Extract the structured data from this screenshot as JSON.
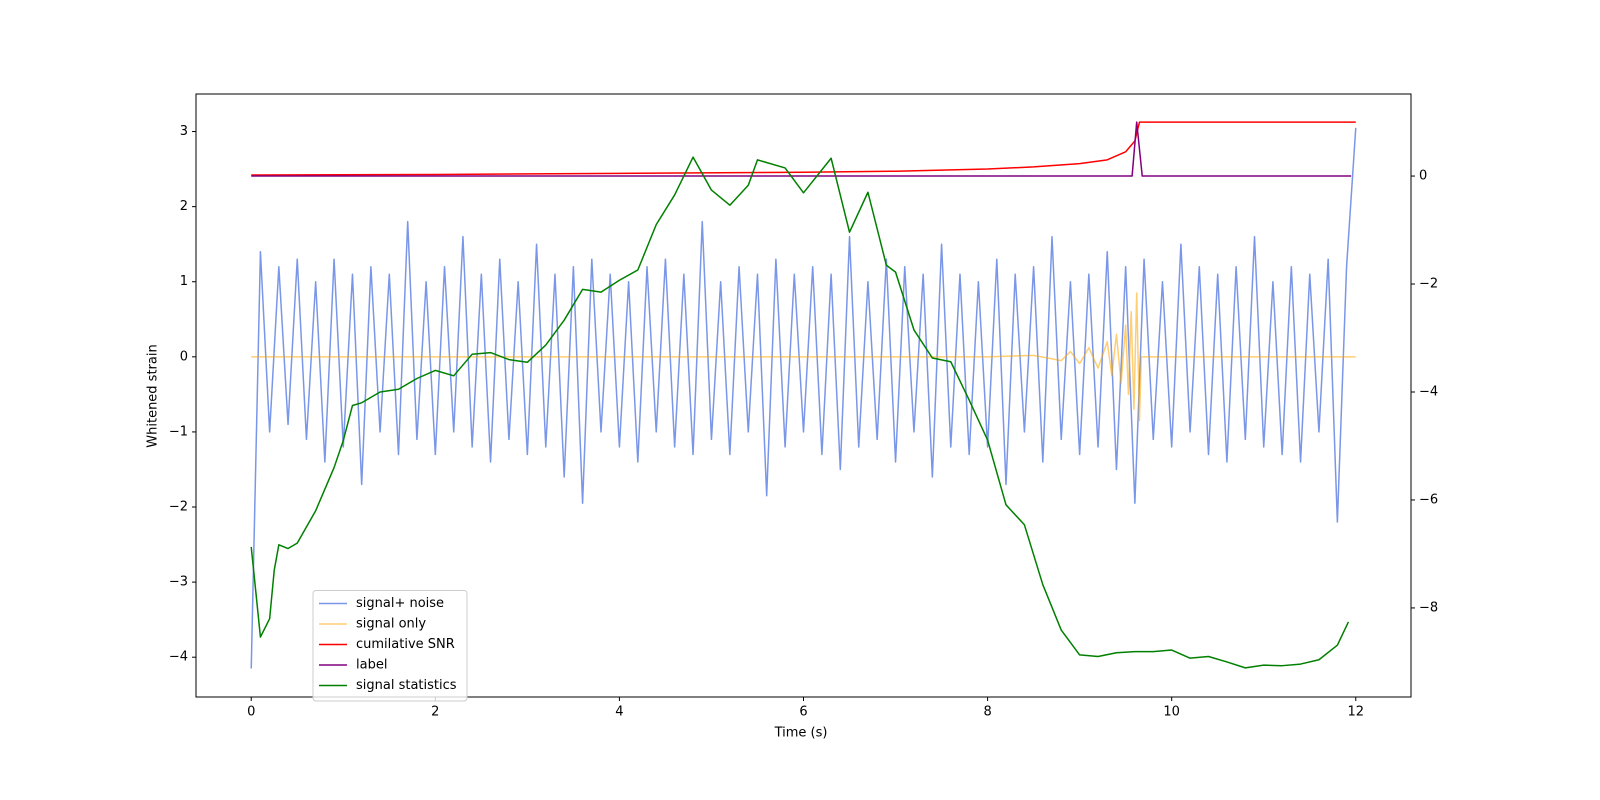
{
  "chart_data": {
    "type": "line",
    "xlabel": "Time (s)",
    "ylabel": "Whitened strain",
    "xlim": [
      -0.6,
      12.6
    ],
    "ylim": [
      -4.53,
      3.5
    ],
    "y2lim": [
      -9.65,
      1.52
    ],
    "xticks": [
      0,
      2,
      4,
      6,
      8,
      10,
      12
    ],
    "yticks": [
      {
        "value": -4,
        "label": "−4"
      },
      {
        "value": -3,
        "label": "−3"
      },
      {
        "value": -2,
        "label": "−2"
      },
      {
        "value": -1,
        "label": "−1"
      },
      0,
      1,
      2,
      3
    ],
    "y2ticks": [
      {
        "value": -8,
        "label": "−8"
      },
      {
        "value": -6,
        "label": "−6"
      },
      {
        "value": -4,
        "label": "−4"
      },
      {
        "value": -2,
        "label": "−2"
      },
      0
    ],
    "legend": "lower left",
    "series": [
      {
        "name": "signal+ noise",
        "color": "#7a96e8",
        "x": [
          0,
          0.1,
          0.2,
          0.3,
          0.4,
          0.5,
          0.6,
          0.7,
          0.8,
          0.9,
          1,
          1.1,
          1.2,
          1.3,
          1.4,
          1.5,
          1.6,
          1.7,
          1.8,
          1.9,
          2,
          2.1,
          2.2,
          2.3,
          2.4,
          2.5,
          2.6,
          2.7,
          2.8,
          2.9,
          3,
          3.1,
          3.2,
          3.3,
          3.4,
          3.5,
          3.6,
          3.7,
          3.8,
          3.9,
          4,
          4.1,
          4.2,
          4.3,
          4.4,
          4.5,
          4.6,
          4.7,
          4.8,
          4.9,
          5,
          5.1,
          5.2,
          5.3,
          5.4,
          5.5,
          5.6,
          5.7,
          5.8,
          5.9,
          6,
          6.1,
          6.2,
          6.3,
          6.4,
          6.5,
          6.6,
          6.7,
          6.8,
          6.9,
          7,
          7.1,
          7.2,
          7.3,
          7.4,
          7.5,
          7.6,
          7.7,
          7.8,
          7.9,
          8,
          8.1,
          8.2,
          8.3,
          8.4,
          8.5,
          8.6,
          8.7,
          8.8,
          8.9,
          9,
          9.1,
          9.2,
          9.3,
          9.4,
          9.5,
          9.6,
          9.7,
          9.8,
          9.9,
          10,
          10.1,
          10.2,
          10.3,
          10.4,
          10.5,
          10.6,
          10.7,
          10.8,
          10.9,
          11,
          11.1,
          11.2,
          11.3,
          11.4,
          11.5,
          11.6,
          11.7,
          11.8,
          11.9,
          12
        ],
        "values": [
          -4.15,
          1.4,
          -1.0,
          1.2,
          -0.9,
          1.3,
          -1.1,
          1.0,
          -1.4,
          1.3,
          -1.2,
          1.1,
          -1.7,
          1.2,
          -1.0,
          1.1,
          -1.3,
          1.8,
          -1.1,
          1.0,
          -1.3,
          1.2,
          -1.0,
          1.6,
          -1.2,
          1.1,
          -1.4,
          1.3,
          -1.1,
          1.0,
          -1.3,
          1.5,
          -1.2,
          1.1,
          -1.6,
          1.2,
          -1.95,
          1.3,
          -1.0,
          1.1,
          -1.2,
          1.0,
          -1.4,
          1.2,
          -1.0,
          1.3,
          -1.2,
          1.1,
          -1.3,
          1.8,
          -1.1,
          1.0,
          -1.3,
          1.2,
          -1.0,
          1.1,
          -1.85,
          1.3,
          -1.2,
          1.1,
          -1.0,
          1.2,
          -1.3,
          1.1,
          -1.5,
          1.6,
          -1.2,
          1.0,
          -1.1,
          1.3,
          -1.4,
          1.2,
          -1.0,
          1.1,
          -1.6,
          1.5,
          -1.2,
          1.1,
          -1.3,
          1.0,
          -1.2,
          1.3,
          -1.7,
          1.1,
          -1.0,
          1.2,
          -1.4,
          1.6,
          -1.1,
          1.0,
          -1.3,
          1.1,
          -1.2,
          1.4,
          -1.5,
          1.2,
          -1.95,
          1.3,
          -1.1,
          1.0,
          -1.2,
          1.5,
          -1.0,
          1.2,
          -1.3,
          1.1,
          -1.4,
          1.2,
          -1.1,
          1.6,
          -1.2,
          1.0,
          -1.3,
          1.2,
          -1.4,
          1.1,
          -1.0,
          1.3,
          -2.2,
          1.2,
          3.05
        ]
      },
      {
        "name": "signal only",
        "color": "#ffa500",
        "x": [
          0,
          8.0,
          8.5,
          8.8,
          8.9,
          9.0,
          9.1,
          9.2,
          9.3,
          9.35,
          9.4,
          9.45,
          9.5,
          9.53,
          9.56,
          9.59,
          9.62,
          9.65,
          9.67,
          12
        ],
        "values": [
          0,
          0,
          0.02,
          -0.05,
          0.07,
          -0.09,
          0.12,
          -0.15,
          0.2,
          -0.25,
          0.3,
          -0.35,
          0.42,
          -0.5,
          0.6,
          -0.7,
          0.85,
          -0.85,
          0,
          0
        ]
      },
      {
        "name": "cumilative SNR",
        "color": "#ff0000",
        "axis": "y2",
        "x": [
          0,
          2,
          4,
          6,
          7,
          8,
          8.5,
          9,
          9.3,
          9.5,
          9.6,
          9.65,
          9.7,
          12
        ],
        "values": [
          0.02,
          0.03,
          0.05,
          0.07,
          0.09,
          0.13,
          0.17,
          0.23,
          0.3,
          0.45,
          0.65,
          1.0,
          1.0,
          1.0
        ]
      },
      {
        "name": "label",
        "color": "#800080",
        "axis": "y2",
        "x": [
          0,
          9.57,
          9.62,
          9.68,
          11.95
        ],
        "values": [
          0,
          0,
          1.0,
          0,
          0
        ]
      },
      {
        "name": "signal statistics",
        "color": "#008000",
        "axis": "y2",
        "x": [
          0,
          0.1,
          0.2,
          0.25,
          0.3,
          0.4,
          0.5,
          0.7,
          0.8,
          0.9,
          1.0,
          1.1,
          1.2,
          1.4,
          1.6,
          1.8,
          2.0,
          2.2,
          2.4,
          2.6,
          2.8,
          3.0,
          3.2,
          3.4,
          3.6,
          3.8,
          4.0,
          4.2,
          4.4,
          4.6,
          4.8,
          5.0,
          5.2,
          5.4,
          5.5,
          5.8,
          6.0,
          6.3,
          6.5,
          6.7,
          6.9,
          7.0,
          7.2,
          7.4,
          7.6,
          7.8,
          8.0,
          8.2,
          8.4,
          8.6,
          8.8,
          9.0,
          9.2,
          9.4,
          9.6,
          9.8,
          10.0,
          10.2,
          10.4,
          10.6,
          10.8,
          11.0,
          11.2,
          11.4,
          11.6,
          11.8,
          11.92
        ],
        "values": [
          -6.87,
          -8.54,
          -8.2,
          -7.3,
          -6.83,
          -6.9,
          -6.8,
          -6.2,
          -5.8,
          -5.4,
          -4.9,
          -4.25,
          -4.2,
          -4.0,
          -3.95,
          -3.75,
          -3.6,
          -3.7,
          -3.3,
          -3.27,
          -3.4,
          -3.45,
          -3.13,
          -2.67,
          -2.1,
          -2.15,
          -1.93,
          -1.74,
          -0.9,
          -0.35,
          0.35,
          -0.26,
          -0.54,
          -0.17,
          0.3,
          0.15,
          -0.31,
          0.33,
          -1.04,
          -0.3,
          -1.65,
          -1.78,
          -2.85,
          -3.37,
          -3.44,
          -4.15,
          -4.89,
          -6.09,
          -6.46,
          -7.57,
          -8.41,
          -8.87,
          -8.9,
          -8.83,
          -8.81,
          -8.81,
          -8.78,
          -8.93,
          -8.9,
          -9.0,
          -9.11,
          -9.06,
          -9.07,
          -9.04,
          -8.96,
          -8.69,
          -8.26
        ]
      }
    ]
  }
}
